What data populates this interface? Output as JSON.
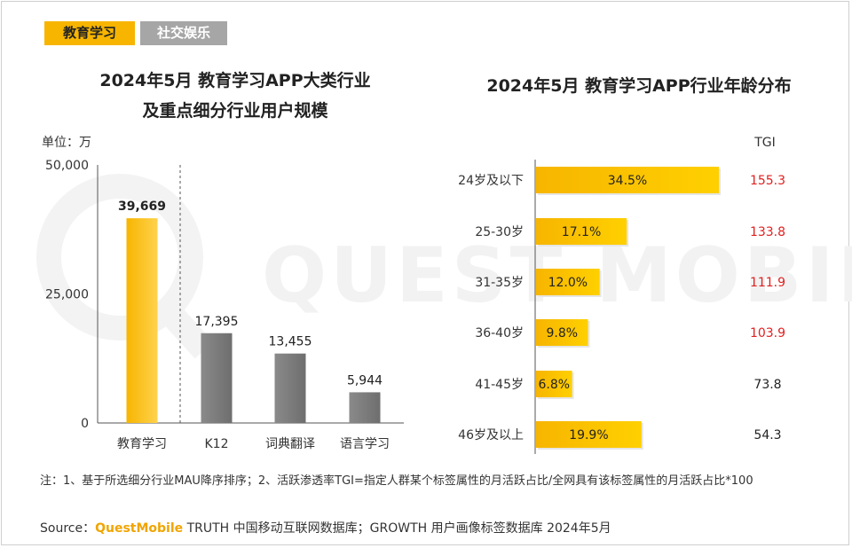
{
  "tabs": [
    {
      "label": "教育学习",
      "active": true
    },
    {
      "label": "社交娱乐",
      "active": false
    }
  ],
  "watermark": "QUEST MOBILE",
  "colors": {
    "accent": "#f7b500",
    "gray_bar": "#808080",
    "tgi_high": "#e02020",
    "tgi_low": "#222222"
  },
  "left_chart": {
    "title_line1": "2024年5月 教育学习APP大类行业",
    "title_line2": "及重点细分行业用户规模",
    "unit": "单位：万"
  },
  "right_chart": {
    "title": "2024年5月 教育学习APP行业年龄分布",
    "tgi_header": "TGI"
  },
  "chart_data": [
    {
      "type": "bar",
      "categories": [
        "教育学习",
        "K12",
        "词典翻译",
        "语言学习"
      ],
      "values": [
        39669,
        17395,
        13455,
        5944
      ],
      "value_labels": [
        "39,669",
        "17,395",
        "13,455",
        "5,944"
      ],
      "ylim": [
        0,
        50000
      ],
      "yticks": [
        0,
        25000,
        50000
      ],
      "ytick_labels": [
        "0",
        "25,000",
        "50,000"
      ],
      "grid": false
    },
    {
      "type": "bar",
      "orientation": "horizontal",
      "categories": [
        "24岁及以下",
        "25-30岁",
        "31-35岁",
        "36-40岁",
        "41-45岁",
        "46岁及以上"
      ],
      "values": [
        34.5,
        17.1,
        12.0,
        9.8,
        6.8,
        19.9
      ],
      "value_labels": [
        "34.5%",
        "17.1%",
        "12.0%",
        "9.8%",
        "6.8%",
        "19.9%"
      ],
      "tgi": [
        "155.3",
        "133.8",
        "111.9",
        "103.9",
        "73.8",
        "54.3"
      ],
      "tgi_threshold": 100
    }
  ],
  "footer": {
    "note": "注：1、基于所选细分行业MAU降序排序；2、活跃渗透率TGI=指定人群某个标签属性的月活跃占比/全网具有该标签属性的月活跃占比*100",
    "source_prefix": "Source：",
    "source_brand": "QuestMobile",
    "source_rest": " TRUTH 中国移动互联网数据库；GROWTH 用户画像标签数据库 2024年5月"
  }
}
